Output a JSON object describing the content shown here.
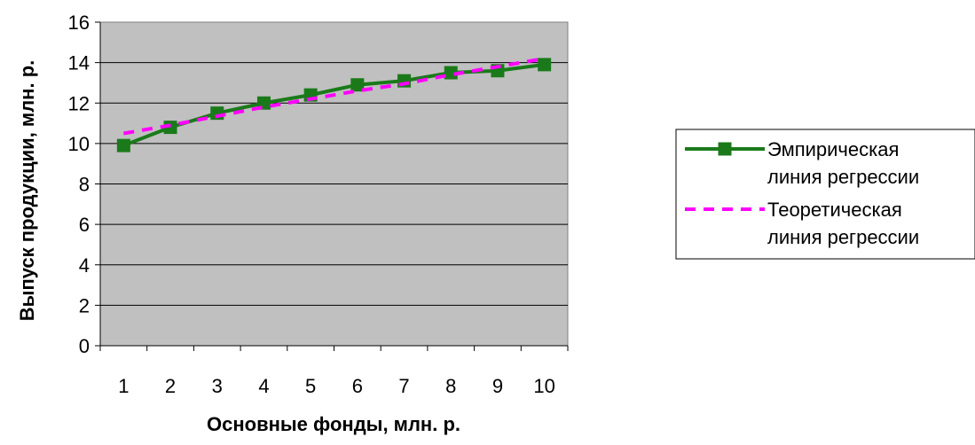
{
  "chart_data": {
    "type": "line",
    "categories": [
      "1",
      "2",
      "3",
      "4",
      "5",
      "6",
      "7",
      "8",
      "9",
      "10"
    ],
    "series": [
      {
        "name": "Эмпирическая линия регрессии",
        "legend_lines": [
          "Эмпирическая",
          "линия регрессии"
        ],
        "values": [
          9.9,
          10.8,
          11.5,
          12.0,
          12.4,
          12.9,
          13.1,
          13.5,
          13.6,
          13.9
        ],
        "color": "#1a7a1a",
        "style": "solid",
        "marker": "square"
      },
      {
        "name": "Теоретическая линия регрессии",
        "legend_lines": [
          "Теоретическая",
          "линия регрессии"
        ],
        "values": [
          10.5,
          10.9,
          11.35,
          11.8,
          12.2,
          12.6,
          12.95,
          13.4,
          13.8,
          14.2
        ],
        "color": "#ff00ff",
        "style": "dashed",
        "marker": "none"
      }
    ],
    "xlabel": "Основные фонды, млн. р.",
    "ylabel": "Выпуск продукции, млн. р.",
    "ylim": [
      0,
      16
    ],
    "yticks": [
      "0",
      "2",
      "4",
      "6",
      "8",
      "10",
      "12",
      "14",
      "16"
    ],
    "grid": "horizontal",
    "plot_background": "#c0c0c0",
    "legend_position": "right"
  }
}
